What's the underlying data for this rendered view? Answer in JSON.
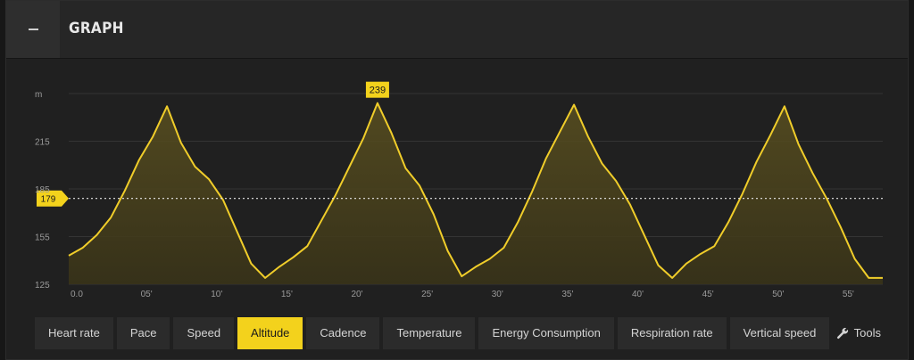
{
  "header": {
    "title": "GRAPH"
  },
  "chart_data": {
    "type": "area",
    "ylabel": "m",
    "y_ticks": [
      125,
      155,
      185,
      215
    ],
    "ylim": [
      125,
      245
    ],
    "x_ticks": [
      "0.0",
      "05'",
      "10'",
      "15'",
      "20'",
      "25'",
      "30'",
      "35'",
      "40'",
      "45'",
      "50'",
      "55'"
    ],
    "xlim": [
      0,
      58
    ],
    "reference_line": {
      "value": 179,
      "label": "179"
    },
    "max_marker": {
      "x": 22,
      "value": 239,
      "label": "239"
    },
    "series": [
      {
        "x": [
          0,
          1,
          2,
          3,
          4,
          5,
          6,
          7,
          8,
          9,
          10,
          11,
          12,
          13,
          14,
          15,
          16,
          17,
          18,
          19,
          20,
          21,
          22,
          23,
          24,
          25,
          26,
          27,
          28,
          29,
          30,
          31,
          32,
          33,
          34,
          35,
          36,
          37,
          38,
          39,
          40,
          41,
          42,
          43,
          44,
          45,
          46,
          47,
          48,
          49,
          50,
          51,
          52,
          53,
          54,
          55,
          56,
          57,
          58
        ],
        "values": [
          143,
          148,
          156,
          167,
          184,
          203,
          218,
          237,
          214,
          199,
          191,
          178,
          158,
          138,
          129,
          136,
          142,
          149,
          165,
          181,
          199,
          217,
          239,
          220,
          198,
          187,
          169,
          146,
          130,
          136,
          141,
          148,
          164,
          183,
          204,
          221,
          238,
          218,
          201,
          190,
          175,
          156,
          137,
          129,
          138,
          144,
          149,
          164,
          182,
          202,
          219,
          237,
          213,
          195,
          179,
          161,
          141,
          129,
          129
        ]
      }
    ]
  },
  "tabs": [
    {
      "label": "Heart rate",
      "active": false
    },
    {
      "label": "Pace",
      "active": false
    },
    {
      "label": "Speed",
      "active": false
    },
    {
      "label": "Altitude",
      "active": true
    },
    {
      "label": "Cadence",
      "active": false
    },
    {
      "label": "Temperature",
      "active": false
    },
    {
      "label": "Energy Consumption",
      "active": false
    },
    {
      "label": "Respiration rate",
      "active": false
    },
    {
      "label": "Vertical speed",
      "active": false
    }
  ],
  "tools": {
    "label": "Tools",
    "icon": "wrench-icon"
  },
  "colors": {
    "accent": "#f3d21c",
    "line": "#f0cd2a"
  }
}
